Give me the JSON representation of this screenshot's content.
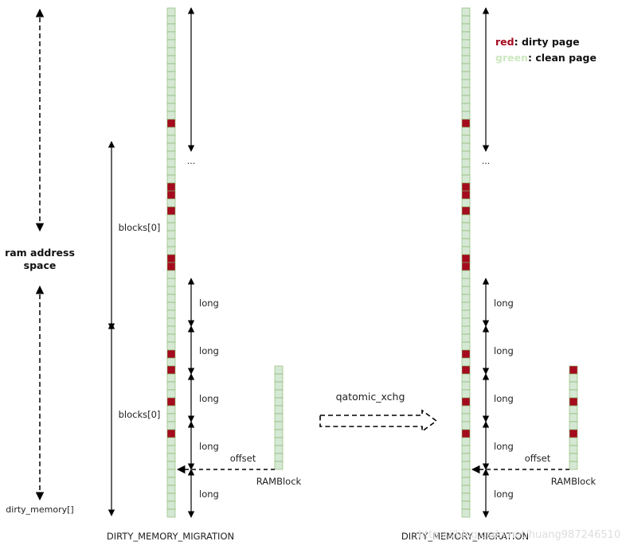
{
  "colors": {
    "dirty": "#a50b1e",
    "clean": "#d5e8d4",
    "clean_stroke": "#82b366",
    "line": "#000000"
  },
  "labels": {
    "ram_address_space": [
      "ram address",
      "space"
    ],
    "dirty_memory": "dirty_memory[]",
    "blocks_top": "blocks[0]",
    "blocks_bottom": "blocks[0]",
    "ellipsis": "...",
    "long": "long",
    "offset": "offset",
    "ramblock": "RAMBlock",
    "qatomic": "qatomic_xchg",
    "bottom_left": "DIRTY_MEMORY_MIGRATION",
    "bottom_right": "DIRTY_MEMORY_MIGRATION",
    "watermark": "https://blog.csdn.net/huang987246510"
  },
  "legend": {
    "red_word": "red",
    "red_rest": ": dirty page",
    "green_word": "green",
    "green_rest": ": clean page"
  },
  "bitmap": {
    "cells": 64,
    "dirty_cells": [
      14,
      22,
      23,
      25,
      31,
      32,
      43,
      45,
      49,
      53
    ]
  },
  "ramblock_left": {
    "cells": 13,
    "dirty_cells": []
  },
  "ramblock_right": {
    "cells": 13,
    "dirty_cells": [
      0,
      4,
      8
    ]
  }
}
